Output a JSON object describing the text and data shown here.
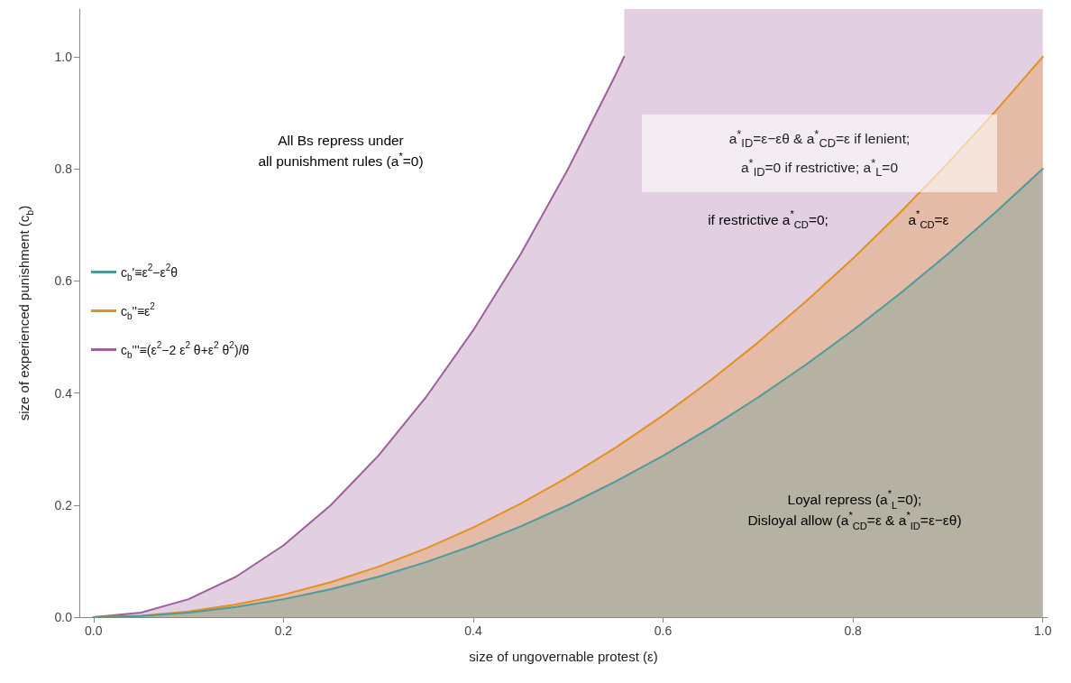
{
  "chart_data": {
    "type": "area",
    "xlabel": "size of ungovernable protest (ε)",
    "ylabel": "size of experienced punishment (c$_{b}$)",
    "xlim": [
      -0.015,
      1.005
    ],
    "ylim": [
      0,
      1.085
    ],
    "xticks": [
      {
        "value": 0,
        "label": "0.0"
      },
      0.2,
      0.4,
      0.6,
      0.8,
      {
        "value": 1,
        "label": "1.0"
      }
    ],
    "yticks": [
      {
        "value": 0,
        "label": "0.0"
      },
      0.2,
      0.4,
      0.6,
      0.8,
      {
        "value": 1,
        "label": "1.0"
      }
    ],
    "grid": false,
    "legend": "left",
    "marker": "none",
    "line_style": "solid",
    "series": [
      {
        "name": "c$_{b}$'''≡(ε$^{2}$−2 ε$^{2}$ θ+ε$^{2}$ θ$^{2}$)/θ",
        "color": "#9e5f9c",
        "x": [
          0,
          0.05,
          0.1,
          0.15,
          0.2,
          0.25,
          0.3,
          0.35,
          0.4,
          0.45,
          0.5,
          0.55,
          0.559
        ],
        "values": [
          0,
          0.008,
          0.032,
          0.072,
          0.128,
          0.2,
          0.288,
          0.392,
          0.512,
          0.648,
          0.8,
          0.968,
          1.0
        ]
      },
      {
        "name": "c$_{b}$''≡ε$^{2}$",
        "color": "#e4901d",
        "x": [
          0,
          0.05,
          0.1,
          0.15,
          0.2,
          0.25,
          0.3,
          0.35,
          0.4,
          0.45,
          0.5,
          0.55,
          0.6,
          0.65,
          0.7,
          0.75,
          0.8,
          0.85,
          0.9,
          0.95,
          1
        ],
        "values": [
          0,
          0.0025,
          0.01,
          0.0225,
          0.04,
          0.0625,
          0.09,
          0.1225,
          0.16,
          0.2025,
          0.25,
          0.3025,
          0.36,
          0.4225,
          0.49,
          0.5625,
          0.64,
          0.7225,
          0.81,
          0.9025,
          1
        ]
      },
      {
        "name": "c$_{b}$'≡ε$^{2}$−ε$^{2}$θ",
        "color": "#4c9b9c",
        "x": [
          0,
          0.05,
          0.1,
          0.15,
          0.2,
          0.25,
          0.3,
          0.35,
          0.4,
          0.45,
          0.5,
          0.55,
          0.6,
          0.65,
          0.7,
          0.75,
          0.8,
          0.85,
          0.9,
          0.95,
          1
        ],
        "values": [
          0,
          0.002,
          0.008,
          0.018,
          0.032,
          0.05,
          0.072,
          0.098,
          0.128,
          0.162,
          0.2,
          0.242,
          0.288,
          0.338,
          0.392,
          0.45,
          0.512,
          0.578,
          0.648,
          0.722,
          0.8
        ]
      }
    ],
    "bands": [
      {
        "axis": "x",
        "from": 0.559,
        "to": 1.0,
        "color": "#9e5f9c"
      }
    ],
    "annotations": [
      "All Bs repress under\nall punishment rules (a$^{*}$=0)",
      "a$^{*}$$_{ID}$=ε−εθ & a$^{*}$$_{CD}$=ε if lenient;\na$^{*}$$_{ID}$=0 if restrictive; a$^{*}$$_{L}$=0",
      "if restrictive a$^{*}$$_{CD}$=0;",
      "a$^{*}$$_{CD}$=ε",
      "Loyal repress (a$^{*}$$_{L}$=0);\nDisloyal allow (a$^{*}$$_{CD}$=ε & a$^{*}$$_{ID}$=ε−εθ)"
    ]
  }
}
